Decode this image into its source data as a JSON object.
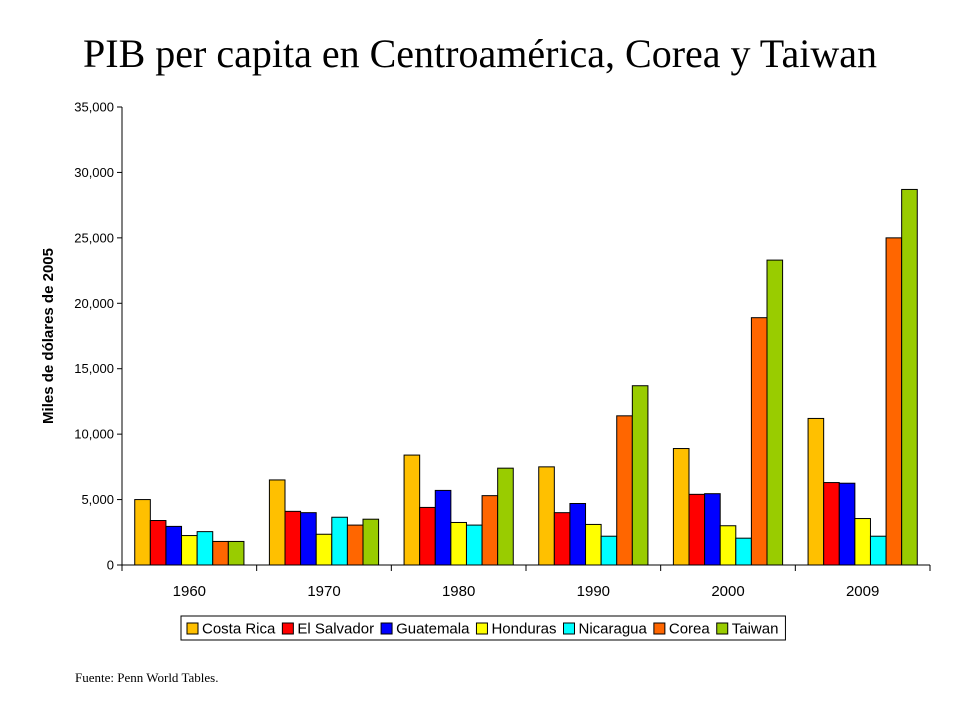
{
  "page": {
    "title": "PIB per capita en Centroamérica, Corea y Taiwan",
    "footnote": "Fuente: Penn World Tables."
  },
  "chart_data": {
    "type": "bar",
    "title": "PIB per capita en Centroamérica, Corea y Taiwan",
    "xlabel": "",
    "ylabel": "Miles de dólares de 2005",
    "ylim": [
      0,
      35000
    ],
    "yticks": [
      0,
      5000,
      10000,
      15000,
      20000,
      25000,
      30000,
      35000
    ],
    "ytick_labels": [
      "0",
      "5,000",
      "10,000",
      "15,000",
      "20,000",
      "25,000",
      "30,000",
      "35,000"
    ],
    "grid": false,
    "legend_position": "bottom",
    "categories": [
      "1960",
      "1970",
      "1980",
      "1990",
      "2000",
      "2009"
    ],
    "series": [
      {
        "name": "Costa Rica",
        "color": "#FFC000",
        "values": [
          5000,
          6500,
          8400,
          7500,
          8900,
          11200
        ]
      },
      {
        "name": "El Salvador",
        "color": "#FF0000",
        "values": [
          3400,
          4100,
          4400,
          4000,
          5400,
          6300
        ]
      },
      {
        "name": "Guatemala",
        "color": "#0000FF",
        "values": [
          2950,
          4000,
          5700,
          4700,
          5450,
          6250
        ]
      },
      {
        "name": "Honduras",
        "color": "#FFFF00",
        "values": [
          2250,
          2350,
          3250,
          3100,
          3000,
          3550
        ]
      },
      {
        "name": "Nicaragua",
        "color": "#00FFFF",
        "values": [
          2550,
          3650,
          3050,
          2200,
          2050,
          2200
        ]
      },
      {
        "name": "Corea",
        "color": "#FF6600",
        "values": [
          1800,
          3050,
          5300,
          11400,
          18900,
          25000
        ]
      },
      {
        "name": "Taiwan",
        "color": "#99CC00",
        "values": [
          1800,
          3500,
          7400,
          13700,
          23300,
          28700
        ]
      }
    ]
  }
}
